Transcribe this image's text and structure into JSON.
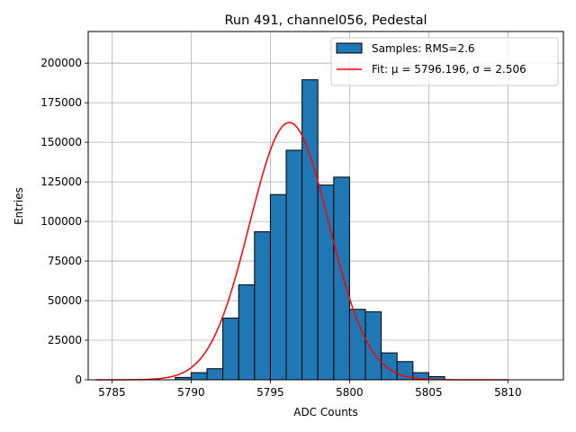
{
  "chart_data": {
    "type": "bar",
    "title": "Run 491, channel056, Pedestal",
    "xlabel": "ADC Counts",
    "ylabel": "Entries",
    "xlim": [
      5783.5,
      5813.5
    ],
    "ylim": [
      0,
      220000
    ],
    "x_ticks": [
      5785,
      5790,
      5795,
      5800,
      5805,
      5810
    ],
    "y_ticks": [
      0,
      25000,
      50000,
      75000,
      100000,
      125000,
      150000,
      175000,
      200000
    ],
    "grid": true,
    "legend_position": "top-right",
    "histogram": {
      "name": "Samples: RMS=2.6",
      "bin_width": 1,
      "bin_edges_start": [
        5789,
        5790,
        5791,
        5792,
        5793,
        5794,
        5795,
        5796,
        5797,
        5798,
        5799,
        5800,
        5801,
        5802,
        5803,
        5804,
        5805
      ],
      "values": [
        1500,
        4500,
        7000,
        39000,
        60000,
        93500,
        117000,
        145000,
        189500,
        123000,
        128000,
        44500,
        43000,
        17000,
        11500,
        4500,
        2000
      ],
      "color": "#1f77b4",
      "edge_color": "#000000"
    },
    "fit": {
      "name": "Fit: μ = 5796.196, σ = 2.506",
      "mu": 5796.196,
      "sigma": 2.506,
      "amplitude": 162500,
      "x_range": [
        5784,
        5810
      ],
      "color": "#ff0000"
    }
  }
}
